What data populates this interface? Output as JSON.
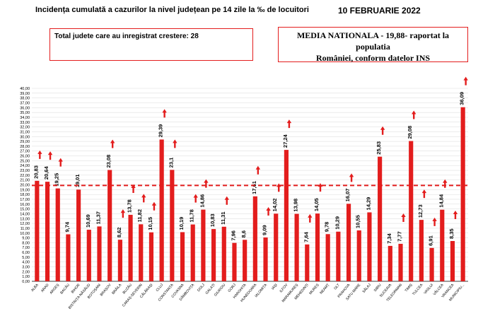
{
  "header": {
    "title": "Incidența cumulată a cazurilor la nivel județean pe 14 zile la ‰ de locuitori",
    "date": "10 FEBRUARIE 2022",
    "total_label": "Total judete care au inregistrat crestere: 28",
    "national_line1": "MEDIA NATIONALA - 19,88-  raportat la populatia",
    "national_line2": "României, conform datelor INS"
  },
  "colors": {
    "bar": "#e31d1d",
    "reference_line": "#e31d1d",
    "arrow": "#e31d1d",
    "grid": "#d9d9d9"
  },
  "chart_data": {
    "type": "bar",
    "title": "Incidența cumulată a cazurilor la nivel județean pe 14 zile la ‰ de locuitori",
    "categories": [
      "ALBA",
      "ARAD",
      "ARGEȘ",
      "BACĂU",
      "BIHOR",
      "BISTRIȚA-NĂSĂUD",
      "BOTOȘANI",
      "BRAȘOV",
      "BRĂILA",
      "BUZĂU",
      "CARAȘ-SEVERIN",
      "CĂLĂRAȘI",
      "CLUJ",
      "CONSTANȚA",
      "COVASNA",
      "DÂMBOVIȚA",
      "DOLJ",
      "GALAȚI",
      "GIURGIU",
      "GORJ",
      "HARGHITA",
      "HUNEDOARA",
      "IALOMIȚA",
      "IAȘI",
      "ILFOV",
      "MARAMUREȘ",
      "MEHEDINȚI",
      "MUREȘ",
      "NEAMȚ",
      "OLT",
      "PRAHOVA",
      "SATU MARE",
      "SĂLAJ",
      "SIBIU",
      "SUCEAVA",
      "TELEORMAN",
      "TIMIȘ",
      "TULCEA",
      "VASLUI",
      "VÂLCEA",
      "VRANCEA",
      "MUNICIPIU..."
    ],
    "values": [
      20.83,
      20.64,
      19.25,
      9.74,
      19.01,
      10.69,
      11.37,
      23.08,
      8.62,
      13.78,
      11.82,
      10.15,
      29.39,
      23.1,
      10.19,
      11.78,
      14.86,
      10.83,
      11.31,
      7.96,
      8.6,
      17.61,
      9.09,
      14.02,
      27.24,
      13.98,
      7.64,
      14.05,
      9.78,
      10.29,
      16.07,
      10.55,
      14.29,
      25.83,
      7.34,
      7.77,
      29.08,
      12.73,
      6.91,
      14.84,
      8.35,
      36.09
    ],
    "value_labels": [
      "20,83",
      "20,64",
      "19,25",
      "9,74",
      "19,01",
      "10,69",
      "11,37",
      "23,08",
      "8,62",
      "13,78",
      "11,82",
      "10,15",
      "29,39",
      "23,1",
      "10,19",
      "11,78",
      "14,86",
      "10,83",
      "11,31",
      "7,96",
      "8,6",
      "17,61",
      "9,09",
      "14,02",
      "27,24",
      "13,98",
      "7,64",
      "14,05",
      "9,78",
      "10,29",
      "16,07",
      "10,55",
      "14,29",
      "25,83",
      "7,34",
      "7,77",
      "29,08",
      "12,73",
      "6,91",
      "14,84",
      "8,35",
      "36,09"
    ],
    "increase_arrow": [
      true,
      true,
      true,
      false,
      false,
      false,
      false,
      true,
      true,
      true,
      true,
      true,
      true,
      true,
      false,
      true,
      true,
      false,
      true,
      false,
      false,
      true,
      true,
      true,
      true,
      false,
      true,
      true,
      false,
      false,
      true,
      false,
      false,
      true,
      false,
      true,
      true,
      true,
      true,
      true,
      true,
      true
    ],
    "reference_line": {
      "value": 19.88
    },
    "ylim": [
      0,
      40
    ],
    "ytick_step": 1,
    "ytick_labels": [
      "0,00",
      "1,00",
      "2,00",
      "3,00",
      "4,00",
      "5,00",
      "6,00",
      "7,00",
      "8,00",
      "9,00",
      "10,00",
      "11,00",
      "12,00",
      "13,00",
      "14,00",
      "15,00",
      "16,00",
      "17,00",
      "18,00",
      "19,00",
      "20,00",
      "21,00",
      "22,00",
      "23,00",
      "24,00",
      "25,00",
      "26,00",
      "27,00",
      "28,00",
      "29,00",
      "30,00",
      "31,00",
      "32,00",
      "33,00",
      "34,00",
      "35,00",
      "36,00",
      "37,00",
      "38,00",
      "39,00",
      "40,00"
    ],
    "grid": true,
    "legend": "none"
  }
}
